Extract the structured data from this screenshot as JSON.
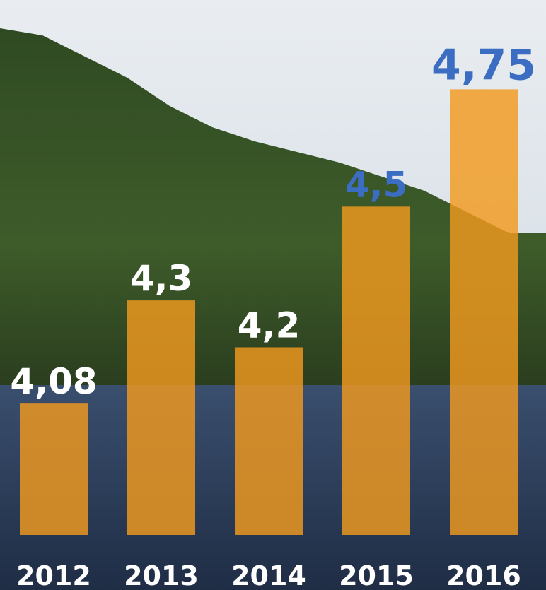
{
  "chart_data": {
    "type": "bar",
    "categories": [
      "2012",
      "2013",
      "2014",
      "2015",
      "2016"
    ],
    "values": [
      4.08,
      4.3,
      4.2,
      4.5,
      4.75
    ],
    "value_labels": [
      "4,08",
      "4,3",
      "4,2",
      "4,5",
      "4,75"
    ],
    "label_colors": [
      "#ffffff",
      "#ffffff",
      "#ffffff",
      "#3b6dc2",
      "#3b6dc2"
    ],
    "color": "#f29a1f",
    "ylim": [
      3.8,
      4.85
    ]
  }
}
